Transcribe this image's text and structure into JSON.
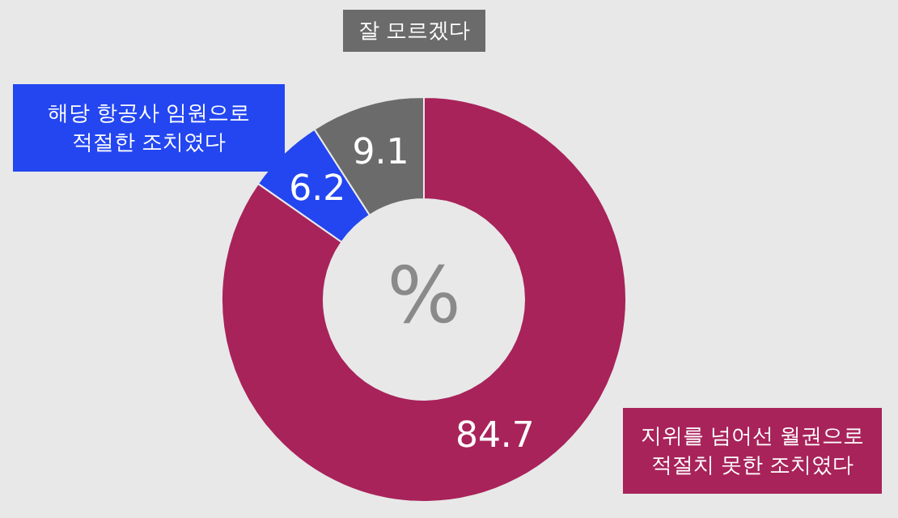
{
  "chart_data": {
    "type": "donut",
    "categories": [
      "지위를 넘어선 월권으로 적절치 못한 조치였다",
      "해당 항공사 임원으로 적절한 조치였다",
      "잘 모르겠다"
    ],
    "values": [
      84.7,
      6.2,
      9.1
    ],
    "colors": [
      "#a8235a",
      "#2346f0",
      "#6b6b6b"
    ],
    "data_labels": true,
    "annotations": [
      "%"
    ]
  }
}
